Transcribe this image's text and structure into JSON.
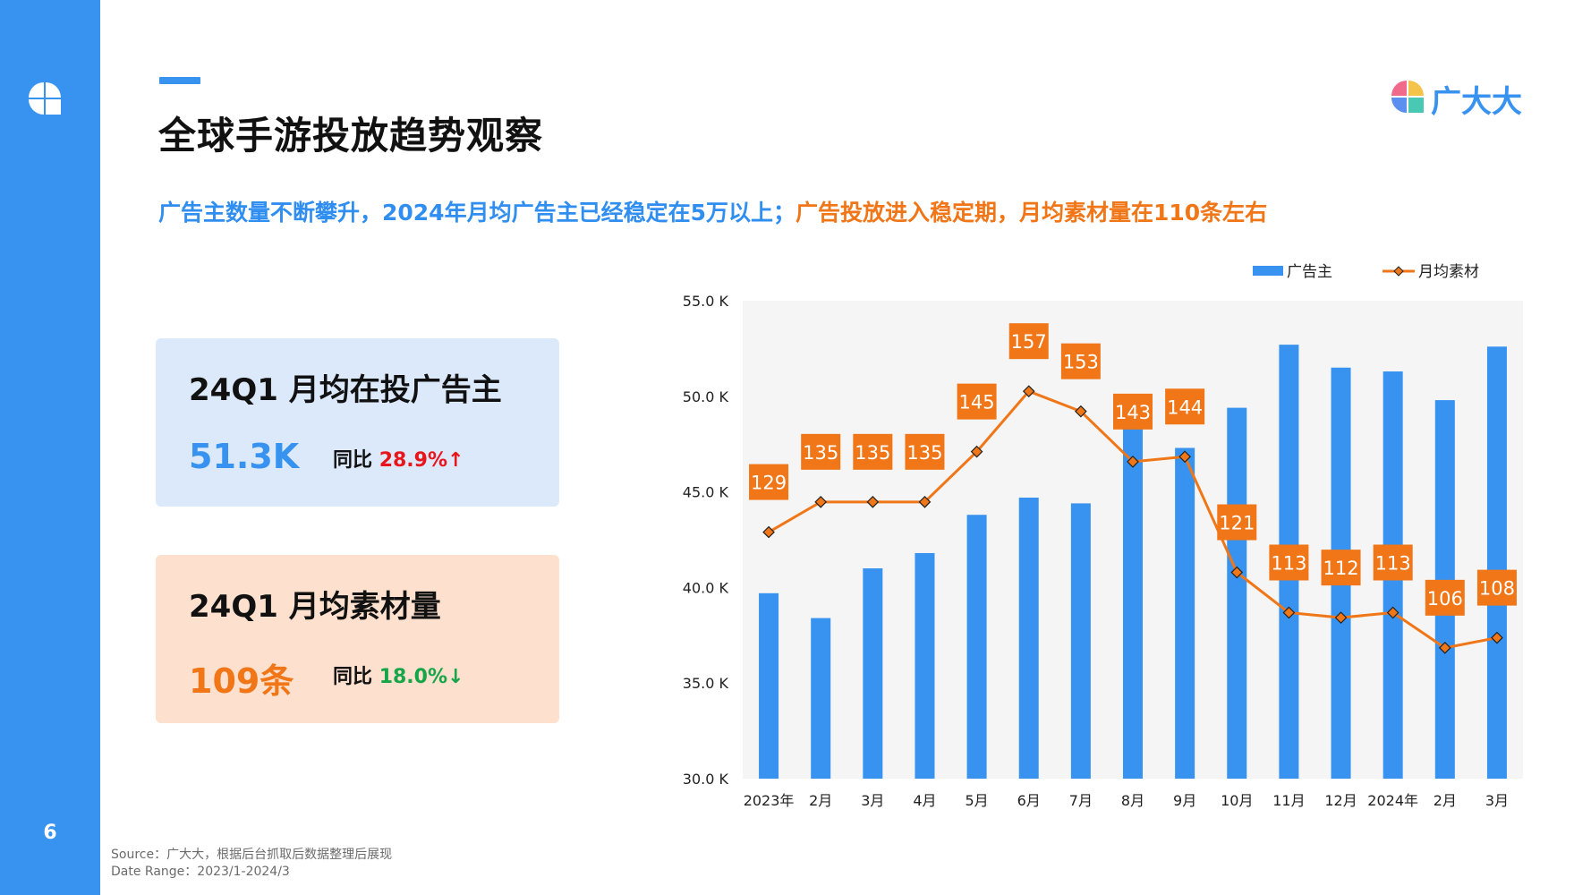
{
  "header": {
    "title": "全球手游投放趋势观察",
    "subtitle_part1": "广告主数量不断攀升，2024年月均广告主已经稳定在5万以上；",
    "subtitle_part2": "广告投放进入稳定期，月均素材量在110条左右",
    "page_number": "6",
    "brand_name": "广大大"
  },
  "cards": [
    {
      "title": "24Q1 月均在投广告主",
      "value": "51.3K",
      "yoy_label": "同比",
      "yoy_value": "28.9%↑",
      "yoy_color": "#e8151b"
    },
    {
      "title": "24Q1 月均素材量",
      "value": "109条",
      "yoy_label": "同比",
      "yoy_value": "18.0%↓",
      "yoy_color": "#17a54a"
    }
  ],
  "footer": {
    "source": "Source：广大大，根据后台抓取后数据整理后展现",
    "date_range": "Date Range：2023/1-2024/3"
  },
  "colors": {
    "accent_blue": "#3792f0",
    "accent_orange": "#f07618",
    "bar_blue": "#3792f0",
    "line_orange": "#f07618"
  },
  "chart_data": {
    "type": "bar",
    "categories": [
      "2023年",
      "2月",
      "3月",
      "4月",
      "5月",
      "6月",
      "7月",
      "8月",
      "9月",
      "10月",
      "11月",
      "12月",
      "2024年",
      "2月",
      "3月"
    ],
    "y_ticks": [
      "55.0 K",
      "50.0 K",
      "45.0 K",
      "40.0 K",
      "35.0 K",
      "30.0 K"
    ],
    "ylim": [
      30,
      55
    ],
    "grid": false,
    "legend_position": "top-right",
    "series": [
      {
        "name": "广告主",
        "type": "bar",
        "color": "#3792f0",
        "values": [
          39.7,
          38.4,
          41.0,
          41.8,
          43.8,
          44.7,
          44.4,
          48.3,
          47.3,
          49.4,
          52.7,
          51.5,
          51.3,
          49.8,
          52.6
        ]
      },
      {
        "name": "月均素材",
        "type": "line",
        "color": "#f07618",
        "values": [
          129,
          135,
          135,
          135,
          145,
          157,
          153,
          143,
          144,
          121,
          113,
          112,
          113,
          106,
          108
        ]
      }
    ]
  }
}
